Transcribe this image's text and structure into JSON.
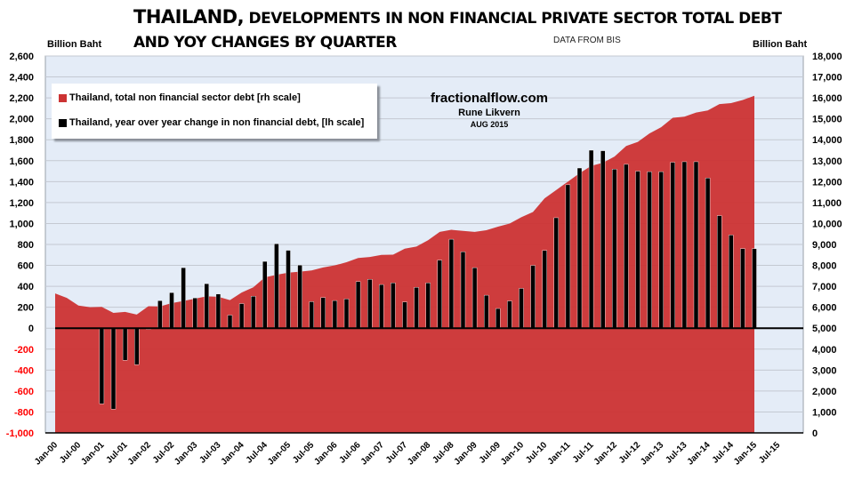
{
  "chart_data": {
    "type": "bar+area",
    "title_line1_big": "THAILAND,",
    "title_line1_rest": " DEVELOPMENTS IN NON FINANCIAL PRIVATE SECTOR TOTAL DEBT",
    "title_line2": "AND YOY CHANGES BY QUARTER",
    "subtitle": "DATA FROM BIS",
    "ylabel_left": "Billion Baht",
    "ylabel_right": "Billion Baht",
    "ylim_left": [
      -1000,
      2600
    ],
    "ylim_right": [
      0,
      18000
    ],
    "yticks_left": [
      "2,600",
      "2,400",
      "2,200",
      "2,000",
      "1,800",
      "1,600",
      "1,400",
      "1,200",
      "1,000",
      "800",
      "600",
      "400",
      "200",
      "0",
      "-200",
      "-400",
      "-600",
      "-800",
      "-1,000"
    ],
    "yticks_right": [
      "18,000",
      "17,000",
      "16,000",
      "15,000",
      "14,000",
      "13,000",
      "12,000",
      "11,000",
      "10,000",
      "9,000",
      "8,000",
      "7,000",
      "6,000",
      "5,000",
      "4,000",
      "3,000",
      "2,000",
      "1,000",
      "0"
    ],
    "negative_tick_color": "#ff0000",
    "xticks": [
      "Jan-00",
      "Jul-00",
      "Jan-01",
      "Jul-01",
      "Jan-02",
      "Jul-02",
      "Jan-03",
      "Jul-03",
      "Jan-04",
      "Jul-04",
      "Jan-05",
      "Jul-05",
      "Jan-06",
      "Jul-06",
      "Jan-07",
      "Jul-07",
      "Jan-08",
      "Jul-08",
      "Jan-09",
      "Jul-09",
      "Jan-10",
      "Jul-10",
      "Jan-11",
      "Jul-11",
      "Jan-12",
      "Jul-12",
      "Jan-13",
      "Jul-13",
      "Jan-14",
      "Jul-14",
      "Jan-15",
      "Jul-15"
    ],
    "grid": true,
    "legend_position": "top-left",
    "series": [
      {
        "name": "Thailand, total non financial sector debt [rh scale]",
        "type": "area",
        "axis": "right",
        "color": "#cc3333",
        "start": "Q1-2000",
        "frequency": "quarterly",
        "values": [
          6660,
          6450,
          6080,
          6000,
          6020,
          5730,
          5780,
          5650,
          6050,
          6040,
          6200,
          6300,
          6410,
          6520,
          6500,
          6340,
          6700,
          6950,
          7430,
          7550,
          7650,
          7700,
          7760,
          7900,
          8000,
          8150,
          8350,
          8400,
          8500,
          8510,
          8800,
          8900,
          9200,
          9600,
          9700,
          9650,
          9600,
          9680,
          9850,
          10000,
          10300,
          10550,
          11200,
          11600,
          12000,
          12400,
          12750,
          12900,
          13200,
          13700,
          13900,
          14300,
          14600,
          15050,
          15100,
          15300,
          15400,
          15700,
          15750,
          15900,
          16100
        ]
      },
      {
        "name": "Thailand, year over year change in non financial debt, [lh scale]",
        "type": "bar",
        "axis": "left",
        "color": "#000000",
        "start": "Q1-2001",
        "frequency": "quarterly",
        "values": [
          -722,
          -773,
          -306,
          -348,
          -10,
          263,
          340,
          578,
          289,
          425,
          326,
          125,
          235,
          305,
          638,
          806,
          744,
          603,
          253,
          293,
          264,
          280,
          445,
          467,
          417,
          433,
          250,
          390,
          433,
          650,
          850,
          730,
          578,
          315,
          188,
          260,
          380,
          600,
          743,
          1055,
          1370,
          1530,
          1700,
          1695,
          1520,
          1565,
          1500,
          1495,
          1495,
          1585,
          1590,
          1590,
          1435,
          1075,
          890,
          760,
          760
        ]
      }
    ]
  },
  "credit": {
    "site": "fractionalflow.com",
    "author": "Rune Likvern",
    "date": "AUG 2015"
  },
  "colors": {
    "plot_background": "#e4ecf7",
    "gridline": "#c4c9d2",
    "area_fill": "#cc3333",
    "bar_fill": "#000000"
  }
}
